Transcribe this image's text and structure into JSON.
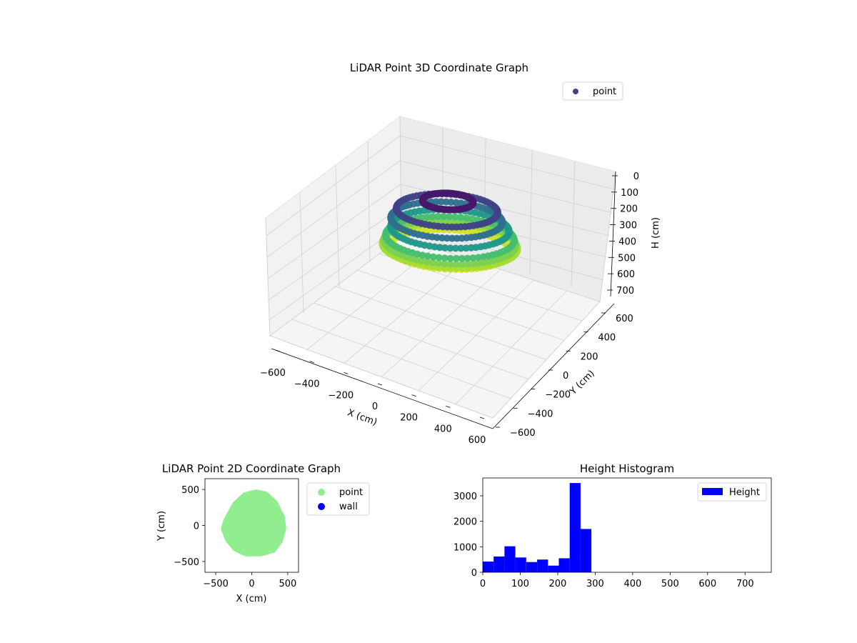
{
  "figure": {
    "background": "#ffffff"
  },
  "chart_data": [
    {
      "id": "lidar-3d",
      "type": "scatter",
      "projection": "3d",
      "title": "LiDAR Point 3D Coordinate Graph",
      "xlabel": "X (cm)",
      "ylabel": "Y (cm)",
      "zlabel": "H (cm)",
      "xlim": [
        -600,
        600
      ],
      "ylim": [
        -600,
        600
      ],
      "zlim": [
        0,
        700
      ],
      "z_inverted": true,
      "xticks": [
        -600,
        -400,
        -200,
        0,
        200,
        400,
        600
      ],
      "yticks": [
        -600,
        -400,
        -200,
        0,
        200,
        400,
        600
      ],
      "zticks": [
        0,
        100,
        200,
        300,
        400,
        500,
        600,
        700
      ],
      "colormap": "viridis",
      "grid": true,
      "legend": {
        "position": "top-right",
        "entries": [
          {
            "label": "point",
            "color": "#414487"
          }
        ]
      },
      "series": [
        {
          "name": "point",
          "description": "ring-shaped point cloud, color mapped to height",
          "rings": [
            {
              "h": 20,
              "r": 150,
              "cx": -20,
              "cy": 60
            },
            {
              "h": 60,
              "r": 300,
              "cx": -20,
              "cy": 20
            },
            {
              "h": 110,
              "r": 330,
              "cx": -20,
              "cy": 0
            },
            {
              "h": 160,
              "r": 350,
              "cx": 0,
              "cy": 0
            },
            {
              "h": 210,
              "r": 380,
              "cx": 0,
              "cy": 0
            },
            {
              "h": 240,
              "r": 390,
              "cx": 0,
              "cy": 0
            },
            {
              "h": 260,
              "r": 400,
              "cx": 0,
              "cy": 0
            },
            {
              "h": 280,
              "r": 360,
              "cx": 0,
              "cy": 0
            }
          ]
        }
      ]
    },
    {
      "id": "lidar-2d",
      "type": "scatter",
      "title": "LiDAR Point 2D Coordinate Graph",
      "xlabel": "X (cm)",
      "ylabel": "Y (cm)",
      "xlim": [
        -650,
        650
      ],
      "ylim": [
        -650,
        650
      ],
      "xticks": [
        -500,
        0,
        500
      ],
      "yticks": [
        -500,
        0,
        500
      ],
      "grid": false,
      "legend": {
        "position": "outside-right",
        "entries": [
          {
            "label": "point",
            "color": "#90ee90"
          },
          {
            "label": "wall",
            "color": "#0000ff"
          }
        ]
      },
      "series": [
        {
          "name": "point",
          "color": "#90ee90",
          "outline": [
            [
              -360,
              80
            ],
            [
              -240,
              300
            ],
            [
              -100,
              430
            ],
            [
              60,
              470
            ],
            [
              200,
              440
            ],
            [
              330,
              320
            ],
            [
              430,
              120
            ],
            [
              450,
              -40
            ],
            [
              400,
              -220
            ],
            [
              300,
              -350
            ],
            [
              120,
              -400
            ],
            [
              -80,
              -400
            ],
            [
              -230,
              -330
            ],
            [
              -340,
              -200
            ],
            [
              -400,
              -40
            ]
          ]
        },
        {
          "name": "wall",
          "color": "#0000ff",
          "points": []
        }
      ]
    },
    {
      "id": "height-histogram",
      "type": "bar",
      "title": "Height Histogram",
      "xlabel": "",
      "ylabel": "",
      "bin_edges": [
        0,
        29,
        58,
        87,
        116,
        145,
        174,
        203,
        232,
        261,
        290
      ],
      "values": [
        420,
        620,
        1020,
        580,
        400,
        500,
        260,
        550,
        3500,
        1700
      ],
      "xlim": [
        0,
        770
      ],
      "ylim": [
        0,
        3700
      ],
      "xticks": [
        0,
        100,
        200,
        300,
        400,
        500,
        600,
        700
      ],
      "yticks": [
        0,
        1000,
        2000,
        3000
      ],
      "color": "#0000ff",
      "grid": false,
      "legend": {
        "position": "top-right",
        "entries": [
          {
            "label": "Height",
            "color": "#0000ff"
          }
        ]
      }
    }
  ]
}
